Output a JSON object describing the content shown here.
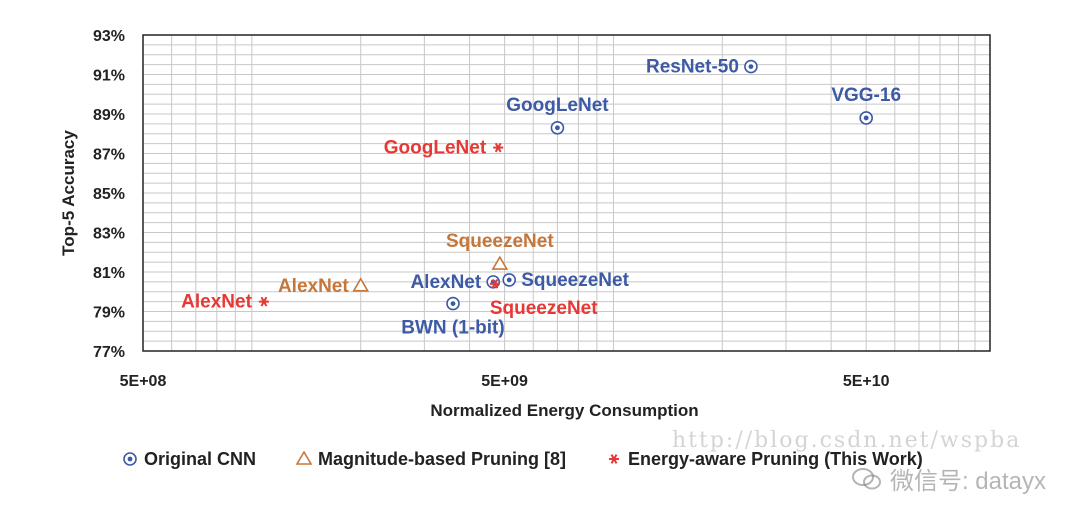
{
  "chart_data": {
    "type": "scatter",
    "title": "",
    "xlabel": "Normalized Energy Consumption",
    "ylabel": "Top-5 Accuracy",
    "x_scale": "log",
    "xlim": [
      500000000,
      110000000000
    ],
    "ylim": [
      77,
      93
    ],
    "x_ticks": [
      {
        "value": 500000000,
        "label": "5E+08"
      },
      {
        "value": 5000000000,
        "label": "5E+09"
      },
      {
        "value": 50000000000,
        "label": "5E+10"
      }
    ],
    "y_ticks": [
      {
        "value": 77,
        "label": "77%"
      },
      {
        "value": 79,
        "label": "79%"
      },
      {
        "value": 81,
        "label": "81%"
      },
      {
        "value": 83,
        "label": "83%"
      },
      {
        "value": 85,
        "label": "85%"
      },
      {
        "value": 87,
        "label": "87%"
      },
      {
        "value": 89,
        "label": "89%"
      },
      {
        "value": 91,
        "label": "91%"
      },
      {
        "value": 93,
        "label": "93%"
      }
    ],
    "grid": true,
    "legend_position": "bottom",
    "series": [
      {
        "name": "Original CNN",
        "marker": "circle-dot",
        "color": "#3d5aa6",
        "points": [
          {
            "label": "ResNet-50",
            "x": 24000000000,
            "y": 91.4,
            "anchor": "left"
          },
          {
            "label": "VGG-16",
            "x": 50000000000,
            "y": 88.8,
            "anchor": "above"
          },
          {
            "label": "GoogLeNet",
            "x": 7000000000,
            "y": 88.3,
            "anchor": "above"
          },
          {
            "label": "AlexNet",
            "x": 4650000000,
            "y": 80.5,
            "anchor": "left"
          },
          {
            "label": "SqueezeNet",
            "x": 5150000000,
            "y": 80.6,
            "anchor": "right"
          },
          {
            "label": "BWN (1-bit)",
            "x": 3600000000,
            "y": 79.4,
            "anchor": "below"
          }
        ]
      },
      {
        "name": "Magnitude-based Pruning [8]",
        "marker": "triangle",
        "color": "#c7763a",
        "points": [
          {
            "label": "AlexNet",
            "x": 2000000000,
            "y": 80.3,
            "anchor": "left"
          },
          {
            "label": "SqueezeNet",
            "x": 4850000000,
            "y": 81.4,
            "anchor": "above"
          }
        ]
      },
      {
        "name": "Energy-aware Pruning (This Work)",
        "marker": "asterisk",
        "color": "#e53935",
        "points": [
          {
            "label": "GoogLeNet",
            "x": 4800000000,
            "y": 87.3,
            "anchor": "left"
          },
          {
            "label": "AlexNet",
            "x": 1080000000,
            "y": 79.5,
            "anchor": "left"
          },
          {
            "label": "SqueezeNet",
            "x": 4700000000,
            "y": 80.4,
            "anchor": "below-right"
          }
        ]
      }
    ]
  },
  "watermark": {
    "url_text": "http://blog.csdn.net/wspba",
    "wechat_text": "微信号: datayx"
  }
}
